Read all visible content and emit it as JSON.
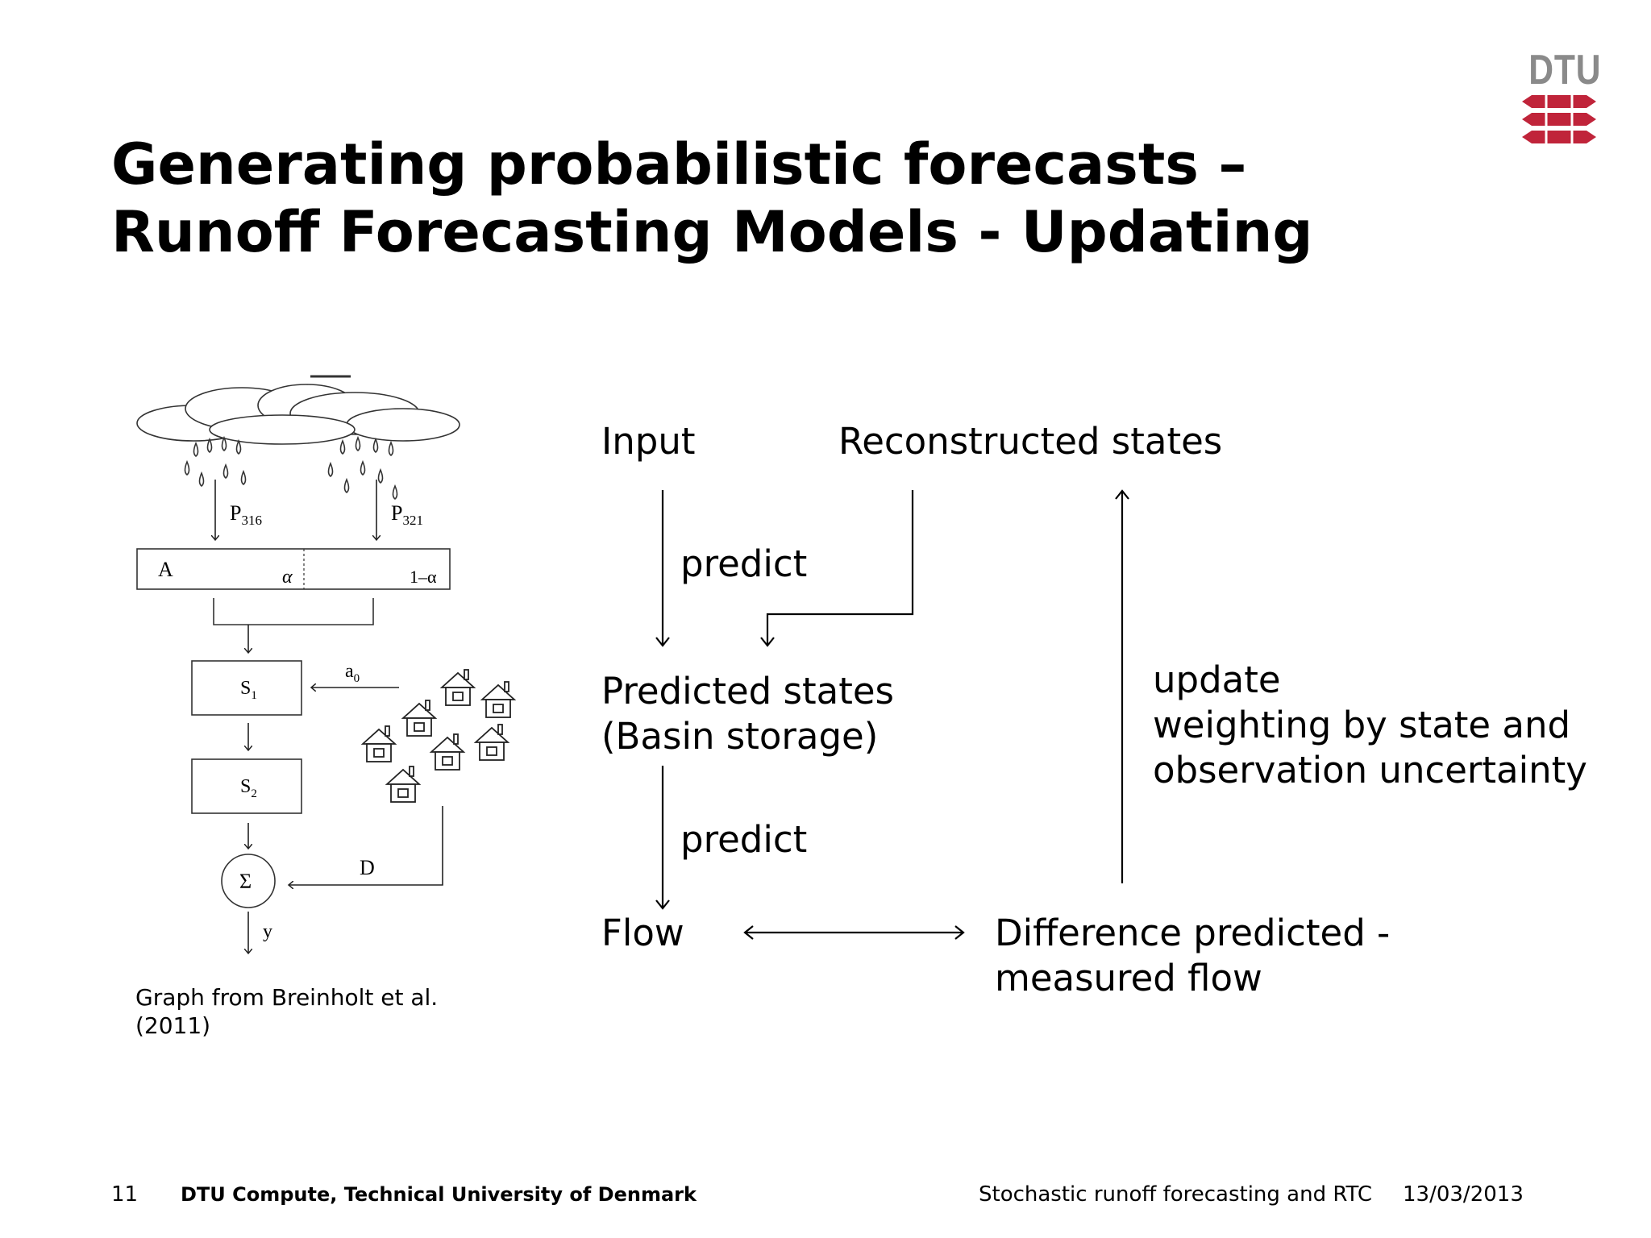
{
  "slide": {
    "title_line1": "Generating probabilistic forecasts –",
    "title_line2": "Runoff Forecasting Models - Updating",
    "logo_text": "DTU",
    "colors": {
      "logo_red": "#c0243a",
      "logo_grey": "#8a8a8a"
    }
  },
  "diagram": {
    "input": "Input",
    "reconstructed_states": "Reconstructed states",
    "predict_1": "predict",
    "predicted_states_line1": "Predicted states",
    "predicted_states_line2": "(Basin storage)",
    "update_line1": "update",
    "update_line2": "weighting by state and",
    "update_line3": "observation uncertainty",
    "predict_2": "predict",
    "flow": "Flow",
    "difference_line1": "Difference predicted -",
    "difference_line2": "measured flow"
  },
  "model_graph": {
    "p316": "P",
    "p316_sub": "316",
    "p321": "P",
    "p321_sub": "321",
    "area": "A",
    "alpha": "α",
    "one_minus_alpha": "1–α",
    "s1": "S",
    "s1_sub": "1",
    "s2": "S",
    "s2_sub": "2",
    "a0": "a",
    "a0_sub": "0",
    "sigma": "Σ",
    "d": "D",
    "y": "y"
  },
  "caption": {
    "line1": "Graph from Breinholt et al.",
    "line2": "(2011)"
  },
  "footer": {
    "page_number": "11",
    "institution": "DTU Compute, Technical University of Denmark",
    "presentation": "Stochastic runoff forecasting and RTC",
    "date": "13/03/2013"
  }
}
